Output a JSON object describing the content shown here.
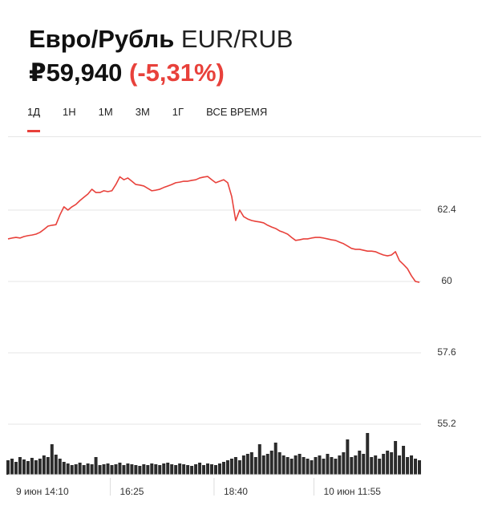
{
  "header": {
    "title": "Евро/Рубль",
    "ticker": "EUR/RUB",
    "price": "₽59,940",
    "change": "(-5,31%)"
  },
  "tabs": [
    "1Д",
    "1Н",
    "1М",
    "3М",
    "1Г",
    "ВСЕ ВРЕМЯ"
  ],
  "chart_data": {
    "type": "line",
    "color": "#e8413b",
    "categories": [
      null,
      null,
      "9 июн 14:10",
      null,
      null,
      null,
      null,
      null,
      null,
      null,
      null,
      null,
      null,
      null,
      null,
      null,
      null,
      null,
      null,
      null,
      null,
      null,
      null,
      null,
      null,
      null,
      null,
      null,
      "16:25",
      null,
      null,
      null,
      null,
      null,
      null,
      null,
      null,
      null,
      null,
      null,
      null,
      null,
      null,
      null,
      null,
      null,
      null,
      null,
      null,
      null,
      null,
      null,
      null,
      null,
      "18:40",
      null,
      null,
      null,
      null,
      null,
      null,
      null,
      null,
      null,
      null,
      null,
      null,
      null,
      null,
      null,
      null,
      null,
      null,
      null,
      null,
      null,
      null,
      null,
      null,
      "10 июн 11:55",
      null,
      null,
      null,
      null,
      null,
      null,
      null,
      null,
      null,
      null,
      null,
      null,
      null,
      null,
      null,
      null,
      null,
      null,
      null,
      null,
      null,
      null,
      null,
      null
    ],
    "values": [
      61.43,
      61.46,
      61.48,
      61.46,
      61.51,
      61.54,
      61.56,
      61.59,
      61.65,
      61.75,
      61.86,
      61.89,
      61.91,
      62.24,
      62.51,
      62.4,
      62.51,
      62.59,
      62.72,
      62.83,
      62.94,
      63.1,
      62.99,
      62.99,
      63.05,
      63.02,
      63.05,
      63.26,
      63.52,
      63.42,
      63.48,
      63.37,
      63.26,
      63.24,
      63.21,
      63.13,
      63.05,
      63.07,
      63.1,
      63.16,
      63.21,
      63.26,
      63.32,
      63.34,
      63.37,
      63.37,
      63.4,
      63.42,
      63.48,
      63.51,
      63.53,
      63.42,
      63.32,
      63.37,
      63.42,
      63.32,
      62.86,
      62.05,
      62.4,
      62.18,
      62.1,
      62.05,
      62.02,
      62.0,
      61.97,
      61.89,
      61.83,
      61.78,
      61.7,
      61.65,
      61.59,
      61.48,
      61.38,
      61.4,
      61.43,
      61.43,
      61.46,
      61.48,
      61.48,
      61.46,
      61.43,
      61.4,
      61.38,
      61.32,
      61.27,
      61.19,
      61.11,
      61.08,
      61.08,
      61.05,
      61.02,
      61.02,
      61.0,
      60.94,
      60.89,
      60.86,
      60.89,
      61.0,
      60.7,
      60.57,
      60.43,
      60.19,
      60.0,
      59.97
    ],
    "volume": {
      "color": "#2b2b2b",
      "values": [
        18,
        20,
        16,
        22,
        19,
        17,
        21,
        18,
        20,
        24,
        22,
        38,
        25,
        20,
        16,
        14,
        12,
        13,
        15,
        12,
        14,
        13,
        22,
        12,
        13,
        14,
        12,
        13,
        15,
        12,
        14,
        13,
        12,
        11,
        13,
        12,
        14,
        13,
        12,
        14,
        15,
        13,
        12,
        14,
        13,
        12,
        11,
        13,
        15,
        12,
        14,
        13,
        12,
        14,
        16,
        18,
        20,
        22,
        18,
        24,
        26,
        28,
        22,
        38,
        24,
        26,
        30,
        40,
        28,
        24,
        22,
        20,
        24,
        26,
        22,
        20,
        18,
        22,
        24,
        20,
        26,
        22,
        20,
        24,
        28,
        44,
        22,
        24,
        30,
        26,
        52,
        22,
        24,
        20,
        26,
        30,
        28,
        42,
        24,
        36,
        22,
        24,
        20,
        18
      ]
    },
    "ylim": [
      53.5,
      64.8
    ],
    "yticks": [
      55.2,
      57.6,
      60,
      62.4
    ],
    "grid": true
  }
}
